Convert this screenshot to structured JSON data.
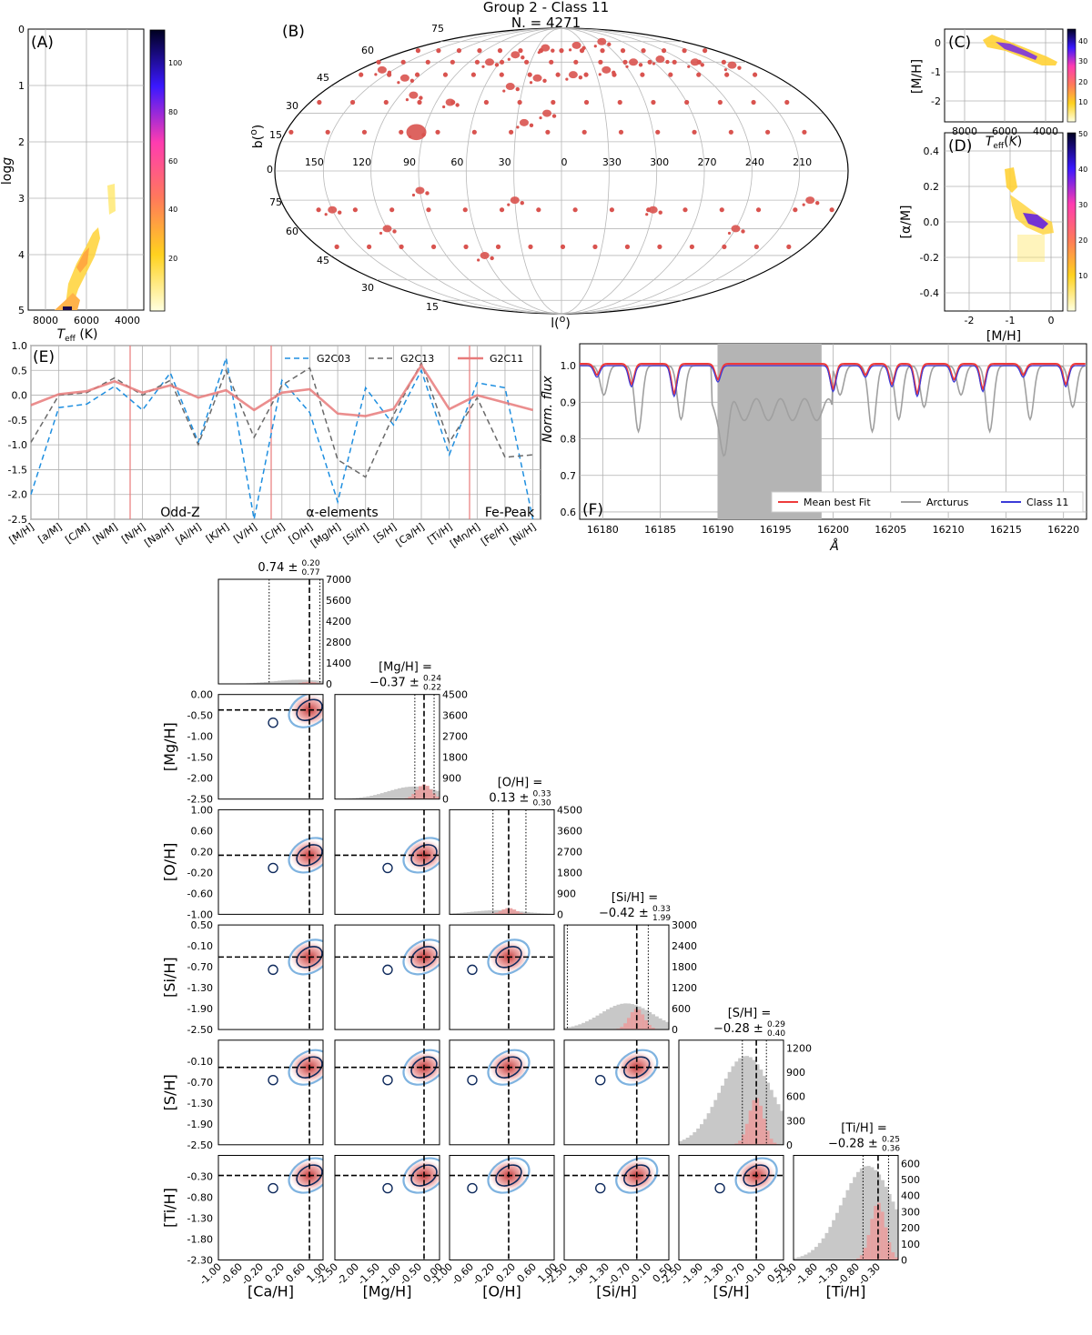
{
  "figure": {
    "title_line1": "Group 2 - Class 11",
    "title_line2": "N. = 4271"
  },
  "panels": {
    "A": "(A)",
    "B": "(B)",
    "C": "(C)",
    "D": "(D)",
    "E": "(E)",
    "F": "(F)"
  },
  "chart_data": [
    {
      "id": "A",
      "type": "heatmap",
      "xlabel": "T_eff (K)",
      "ylabel": "logg",
      "xlim": [
        9000,
        3000
      ],
      "ylim": [
        5,
        0
      ],
      "xticks": [
        "8000",
        "6000",
        "4000"
      ],
      "yticks": [
        "0",
        "1",
        "2",
        "3",
        "4",
        "5"
      ],
      "colorbar": {
        "min": 0,
        "max": 115,
        "ticks": [
          "20",
          "40",
          "60",
          "80",
          "100"
        ]
      },
      "clusters": [
        {
          "x_range": [
            5200,
            4900
          ],
          "y_range": [
            2.7,
            3.2
          ],
          "level": 10
        },
        {
          "x_range": [
            6400,
            5200
          ],
          "y_range": [
            3.9,
            4.7
          ],
          "level": 25
        },
        {
          "x_range": [
            7300,
            5800
          ],
          "y_range": [
            4.6,
            5.0
          ],
          "level": 30
        },
        {
          "x": 6600,
          "y": 4.98,
          "level": 110
        }
      ]
    },
    {
      "id": "B",
      "type": "scatter",
      "projection": "mollweide",
      "xlabel": "l(o)",
      "ylabel": "b(o)",
      "lon_labels": [
        "150",
        "120",
        "90",
        "60",
        "30",
        "0",
        "330",
        "300",
        "270",
        "240",
        "210"
      ],
      "lat_labels_north": [
        "75",
        "60",
        "45",
        "30",
        "15"
      ],
      "lat_labels_south": [
        "0",
        "75",
        "60",
        "45",
        "30",
        "15"
      ],
      "points": [
        {
          "l": 95,
          "b": 20
        },
        {
          "l": 80,
          "b": 36
        },
        {
          "l": 40,
          "b": 45
        },
        {
          "l": 20,
          "b": 50
        },
        {
          "l": 350,
          "b": 52
        },
        {
          "l": 320,
          "b": 55
        },
        {
          "l": 290,
          "b": 60
        },
        {
          "l": 260,
          "b": 62
        },
        {
          "l": 230,
          "b": 60
        },
        {
          "l": 200,
          "b": 58
        },
        {
          "l": 160,
          "b": 55
        },
        {
          "l": 130,
          "b": 50
        },
        {
          "l": 110,
          "b": 40
        },
        {
          "l": 70,
          "b": 60
        },
        {
          "l": 50,
          "b": 65
        },
        {
          "l": 20,
          "b": 70
        },
        {
          "l": 340,
          "b": 72
        },
        {
          "l": 300,
          "b": 75
        },
        {
          "l": 25,
          "b": 25
        },
        {
          "l": 10,
          "b": 30
        },
        {
          "l": 120,
          "b": -30
        },
        {
          "l": 150,
          "b": -20
        },
        {
          "l": 60,
          "b": -45
        },
        {
          "l": 30,
          "b": -15
        },
        {
          "l": 300,
          "b": -20
        },
        {
          "l": 240,
          "b": -30
        },
        {
          "l": 200,
          "b": -15
        },
        {
          "l": 90,
          "b": -10
        }
      ]
    },
    {
      "id": "C",
      "type": "heatmap",
      "xlabel": "T_eff (K)",
      "ylabel": "[M/H]",
      "xlim": [
        9000,
        3000
      ],
      "ylim": [
        -2.5,
        0.5
      ],
      "xticks": [
        "8000",
        "6000",
        "4000"
      ],
      "yticks": [
        "0",
        "-1",
        "-2"
      ],
      "colorbar": {
        "min": 0,
        "max": 45,
        "ticks": [
          "10",
          "20",
          "30",
          "40"
        ]
      },
      "clusters": [
        {
          "x_range": [
            6800,
            4700
          ],
          "y_range": [
            0.3,
            -1.0
          ],
          "level": 30
        }
      ]
    },
    {
      "id": "D",
      "type": "heatmap",
      "xlabel": "[M/H]",
      "ylabel": "[α/M]",
      "xlim": [
        -2.6,
        0.6
      ],
      "ylim": [
        -0.5,
        0.5
      ],
      "xticks": [
        "-2",
        "-1",
        "0"
      ],
      "yticks": [
        "0.4",
        "0.2",
        "0.0",
        "-0.2",
        "-0.4"
      ],
      "colorbar": {
        "min": 0,
        "max": 50,
        "ticks": [
          "10",
          "20",
          "30",
          "40",
          "50"
        ]
      },
      "clusters": [
        {
          "x_range": [
            -1.0,
            -0.7
          ],
          "y_range": [
            0.17,
            0.3
          ],
          "level": 15
        },
        {
          "x_range": [
            -0.8,
            0.2
          ],
          "y_range": [
            -0.15,
            0.1
          ],
          "level": 35
        }
      ]
    },
    {
      "id": "E",
      "type": "line",
      "categories": [
        "[M/H]",
        "[a/M]",
        "[C/M]",
        "[N/M]",
        "[N/H]",
        "[Na/H]",
        "[Al/H]",
        "[K/H]",
        "[V/H]",
        "[C/H]",
        "[O/H]",
        "[Mg/H]",
        "[Si/H]",
        "[S/H]",
        "[Ca/H]",
        "[Ti/H]",
        "[Mn/H]",
        "[Fe/H]",
        "[Ni/H]"
      ],
      "ylim": [
        -2.5,
        1.0
      ],
      "yticks": [
        "1.0",
        "0.5",
        "0.0",
        "-0.5",
        "-1.0",
        "-1.5",
        "-2.0",
        "-2.5"
      ],
      "group_labels": [
        "Odd-Z",
        "α-elements",
        "Fe-Peak"
      ],
      "series": [
        {
          "name": "G2C03",
          "color": "#1f8fe0",
          "dash": "6,4",
          "values": [
            -2.0,
            -0.25,
            -0.18,
            0.18,
            -0.3,
            0.45,
            -0.95,
            0.75,
            -2.5,
            0.3,
            -0.35,
            -2.15,
            0.15,
            -0.6,
            0.5,
            -1.2,
            0.25,
            0.15,
            -2.5
          ]
        },
        {
          "name": "G2C13",
          "color": "#6a6a6a",
          "dash": "6,4",
          "values": [
            -0.95,
            0.0,
            0.05,
            0.35,
            0.0,
            0.3,
            -1.0,
            0.5,
            -0.85,
            0.2,
            0.55,
            -1.3,
            -1.65,
            -0.4,
            0.65,
            -0.95,
            -0.05,
            -1.25,
            -1.2
          ]
        },
        {
          "name": "G2C11",
          "color": "#e87a7a",
          "dash": "",
          "values": [
            -0.2,
            0.02,
            0.08,
            0.28,
            0.05,
            0.2,
            -0.05,
            0.1,
            -0.3,
            0.05,
            0.12,
            -0.37,
            -0.42,
            -0.28,
            0.6,
            -0.28,
            0.0,
            -0.15,
            -0.3
          ]
        }
      ]
    },
    {
      "id": "F",
      "type": "line",
      "xlabel": "Å",
      "ylabel": "Norm. flux",
      "xlim": [
        16178,
        16222
      ],
      "ylim": [
        0.58,
        1.06
      ],
      "xticks": [
        "16180",
        "16185",
        "16190",
        "16195",
        "16200",
        "16205",
        "16210",
        "16215",
        "16220"
      ],
      "yticks": [
        "1.0",
        "0.9",
        "0.8",
        "0.7",
        "0.6"
      ],
      "shaded_range": [
        16190,
        16199
      ],
      "series": [
        {
          "name": "Mean best Fit",
          "color": "#ee3b3b"
        },
        {
          "name": "Arcturus",
          "color": "#a0a0a0"
        },
        {
          "name": "Class 11",
          "color": "#3b3bd8"
        }
      ],
      "lines_centers": [
        16179.5,
        16182.5,
        16186.2,
        16190.0,
        16200.0,
        16202.8,
        16205.1,
        16207.3,
        16210.5,
        16213.0,
        16216.5,
        16220.2
      ]
    },
    {
      "id": "corner",
      "type": "scatter",
      "variables": [
        "[Ca/H]",
        "[Mg/H]",
        "[O/H]",
        "[Si/H]",
        "[S/H]",
        "[Ti/H]"
      ],
      "ranges": [
        [
          -1.0,
          1.0
        ],
        [
          -2.5,
          0.0
        ],
        [
          -1.0,
          1.0
        ],
        [
          -2.5,
          0.5
        ],
        [
          -2.5,
          0.5
        ],
        [
          -2.3,
          0.2
        ]
      ],
      "xticks": [
        [
          "-1.00",
          "-0.60",
          "-0.20",
          "0.20",
          "0.60",
          "1.00"
        ],
        [
          "-2.50",
          "-2.00",
          "-1.50",
          "-1.00",
          "-0.50",
          "0.00"
        ],
        [
          "-1.00",
          "-0.60",
          "-0.20",
          "0.20",
          "0.60",
          "1.00"
        ],
        [
          "-2.50",
          "-1.90",
          "-1.30",
          "-0.70",
          "-0.10",
          "0.50"
        ],
        [
          "-2.50",
          "-1.90",
          "-1.30",
          "-0.70",
          "-0.10",
          "0.50"
        ],
        [
          "-2.30",
          "-1.80",
          "-1.30",
          "-0.80",
          "-0.30"
        ]
      ],
      "yticks": [
        [],
        [
          "0.00",
          "-0.50",
          "-1.00",
          "-1.50",
          "-2.00",
          "-2.50"
        ],
        [
          "1.00",
          "0.60",
          "0.20",
          "-0.20",
          "-0.60",
          "-1.00"
        ],
        [
          "0.50",
          "-0.10",
          "-0.70",
          "-1.30",
          "-1.90",
          "-2.50"
        ],
        [
          "-0.10",
          "-0.70",
          "-1.30",
          "-1.90",
          "-2.50"
        ],
        [
          "-0.30",
          "-0.80",
          "-1.30",
          "-1.80",
          "-2.30"
        ]
      ],
      "hist_ticks": [
        [
          "7000",
          "5600",
          "4200",
          "2800",
          "1400",
          "0"
        ],
        [
          "4500",
          "3600",
          "2700",
          "1800",
          "900",
          "0"
        ],
        [
          "4500",
          "3600",
          "2700",
          "1800",
          "900",
          "0"
        ],
        [
          "3000",
          "2400",
          "1800",
          "1200",
          "600",
          "0"
        ],
        [
          "1200",
          "900",
          "600",
          "300",
          "0"
        ],
        [
          "600",
          "500",
          "400",
          "300",
          "200",
          "100",
          "0"
        ]
      ],
      "hist_max": [
        7000,
        4500,
        4500,
        3000,
        1300,
        650
      ],
      "medians": [
        0.74,
        -0.37,
        0.13,
        -0.42,
        -0.28,
        -0.28
      ],
      "err_plus": [
        "0.20",
        "0.24",
        "0.33",
        "0.33",
        "0.29",
        "0.25"
      ],
      "err_minus": [
        "0.77",
        "0.22",
        "0.30",
        "1.99",
        "0.40",
        "0.36"
      ],
      "title_value": [
        "0.74",
        "−0.37",
        "0.13",
        "−0.42",
        "−0.28",
        "−0.28"
      ],
      "title_name": [
        "",
        "[Mg/H] =",
        "[O/H] =",
        "[Si/H] =",
        "[S/H] =",
        "[Ti/H] ="
      ],
      "axis_labels": [
        "[Ca/H]",
        "[Mg/H]",
        "[O/H]",
        "[Si/H]",
        "[S/H]",
        "[Ti/H]"
      ]
    }
  ],
  "colors": {
    "class": "#d9534f",
    "class_light": "#e8a0a0",
    "all": "#c8c8c8",
    "contour_dark": "#0f2a5c",
    "contour_light": "#7fb3e0"
  }
}
